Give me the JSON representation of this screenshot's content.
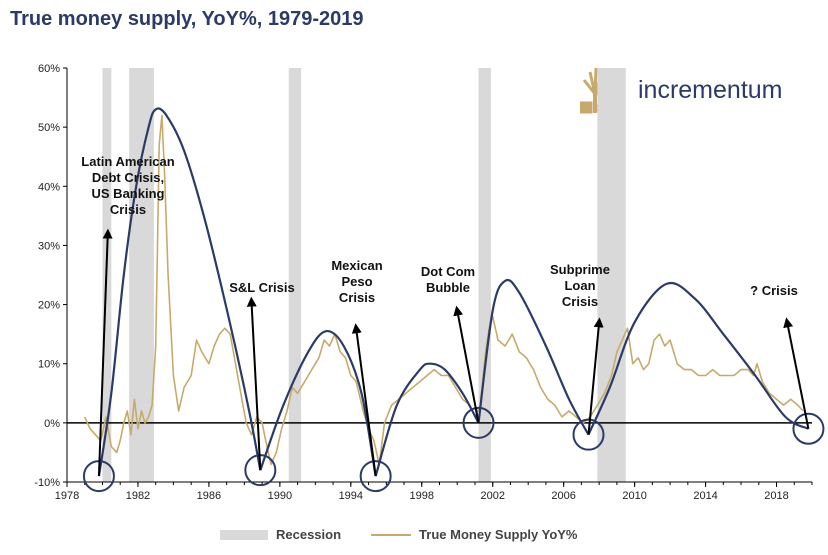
{
  "title": "True money supply, YoY%, 1979-2019",
  "logo": {
    "text": "incrementum",
    "icon": "tree-icon"
  },
  "legend": {
    "recession": "Recession",
    "series": "True Money Supply YoY%"
  },
  "colors": {
    "recession": "#d9d9d9",
    "series": "#c7aa6b",
    "cycle": "#2b3a67",
    "axis": "#000000"
  },
  "chart_data": {
    "type": "line",
    "title": "True money supply, YoY%, 1979-2019",
    "xlim": [
      1978,
      2020
    ],
    "ylim": [
      -10,
      60
    ],
    "y_ticks": [
      -10,
      0,
      10,
      20,
      30,
      40,
      50,
      60
    ],
    "y_tick_labels": [
      "-10%",
      "0%",
      "10%",
      "20%",
      "30%",
      "40%",
      "50%",
      "60%"
    ],
    "x_ticks": [
      1978,
      1982,
      1986,
      1990,
      1994,
      1998,
      2002,
      2006,
      2010,
      2014,
      2018
    ],
    "x_tick_labels": [
      "1978",
      "1982",
      "1986",
      "1990",
      "1994",
      "1998",
      "2002",
      "2006",
      "2010",
      "2014",
      "2018"
    ],
    "recessions": [
      [
        1980.0,
        1980.5
      ],
      [
        1981.5,
        1982.9
      ],
      [
        1990.5,
        1991.2
      ],
      [
        2001.2,
        2001.9
      ],
      [
        2007.9,
        2009.5
      ]
    ],
    "series": [
      {
        "name": "True Money Supply YoY%",
        "x": [
          1979.0,
          1979.3,
          1979.6,
          1979.9,
          1980.2,
          1980.5,
          1980.8,
          1981.0,
          1981.2,
          1981.4,
          1981.6,
          1981.8,
          1982.0,
          1982.2,
          1982.4,
          1982.6,
          1982.8,
          1983.0,
          1983.1,
          1983.2,
          1983.35,
          1983.5,
          1983.7,
          1984.0,
          1984.3,
          1984.6,
          1985.0,
          1985.3,
          1985.6,
          1986.0,
          1986.3,
          1986.6,
          1986.9,
          1987.2,
          1987.5,
          1987.8,
          1988.1,
          1988.4,
          1988.7,
          1989.0,
          1989.2,
          1989.5,
          1989.8,
          1990.1,
          1990.4,
          1990.7,
          1991.0,
          1991.4,
          1991.8,
          1992.2,
          1992.5,
          1992.8,
          1993.1,
          1993.4,
          1993.7,
          1994.0,
          1994.3,
          1994.7,
          1995.0,
          1995.3,
          1995.6,
          1995.9,
          1996.3,
          1996.7,
          1997.1,
          1997.5,
          1997.9,
          1998.3,
          1998.7,
          1999.1,
          1999.5,
          1999.9,
          2000.3,
          2000.7,
          2001.0,
          2001.3,
          2001.6,
          2001.8,
          2002.0,
          2002.3,
          2002.7,
          2003.1,
          2003.5,
          2003.9,
          2004.3,
          2004.7,
          2005.1,
          2005.5,
          2005.9,
          2006.3,
          2006.7,
          2007.1,
          2007.5,
          2007.9,
          2008.3,
          2008.7,
          2009.0,
          2009.3,
          2009.6,
          2009.9,
          2010.2,
          2010.5,
          2010.8,
          2011.1,
          2011.4,
          2011.7,
          2012.0,
          2012.4,
          2012.8,
          2013.2,
          2013.6,
          2014.0,
          2014.4,
          2014.8,
          2015.2,
          2015.6,
          2016.0,
          2016.4,
          2016.7,
          2016.9,
          2017.2,
          2017.6,
          2018.0,
          2018.4,
          2018.8,
          2019.2,
          2019.5
        ],
        "values": [
          1,
          -1,
          -2,
          -3,
          1,
          -4,
          -5,
          -3,
          0,
          2,
          -2,
          4,
          -1,
          2,
          0,
          1,
          3,
          13,
          30,
          47,
          52,
          42,
          25,
          8,
          2,
          6,
          8,
          14,
          12,
          10,
          13,
          15,
          16,
          15,
          10,
          5,
          0,
          -2,
          1,
          0,
          -3,
          -7,
          -5,
          -1,
          2,
          6,
          5,
          7,
          9,
          11,
          14,
          13,
          15,
          12,
          11,
          8,
          7,
          2,
          -1,
          -3,
          -7,
          0,
          3,
          4,
          5,
          6,
          7,
          8,
          9,
          8,
          8,
          6,
          4,
          3,
          1,
          3,
          12,
          16,
          18,
          14,
          13,
          15,
          12,
          11,
          9,
          6,
          4,
          3,
          1,
          2,
          1,
          0,
          1,
          3,
          5,
          8,
          12,
          14,
          16,
          10,
          11,
          9,
          10,
          14,
          15,
          13,
          14,
          10,
          9,
          9,
          8,
          8,
          9,
          8,
          8,
          8,
          9,
          9,
          8,
          10,
          7,
          5,
          4,
          3,
          4,
          3,
          2
        ]
      }
    ],
    "cycles": [
      {
        "x": [
          1979.8,
          1980.5,
          1981.2,
          1981.9,
          1982.6,
          1983.0,
          1983.6,
          1984.6,
          1985.8,
          1987.1,
          1988.2,
          1988.9
        ],
        "y": [
          -9,
          5,
          25,
          40,
          50,
          53,
          52,
          46,
          34,
          18,
          3,
          -8
        ]
      },
      {
        "x": [
          1988.9,
          1990.2,
          1991.6,
          1992.6,
          1993.6,
          1994.6,
          1995.4
        ],
        "y": [
          -8,
          3,
          12,
          15.5,
          13,
          5,
          -9
        ]
      },
      {
        "x": [
          1995.4,
          1996.6,
          1997.9,
          1998.5,
          1999.3,
          2000.3,
          2001.2
        ],
        "y": [
          -9,
          3,
          9,
          10,
          9,
          5,
          0
        ]
      },
      {
        "x": [
          2001.2,
          2002.0,
          2002.7,
          2003.5,
          2005.0,
          2006.3,
          2007.4
        ],
        "y": [
          0,
          19,
          24,
          22,
          13,
          4,
          -2
        ]
      },
      {
        "x": [
          2007.4,
          2008.6,
          2010.0,
          2011.8,
          2013.4,
          2015.0,
          2016.8,
          2018.5,
          2019.8
        ],
        "y": [
          -2,
          6,
          17,
          23.5,
          21,
          15,
          8,
          1,
          -1
        ]
      }
    ],
    "annotations": [
      {
        "lines": [
          "Latin American",
          "Debt Crisis,",
          "US Banking",
          "Crisis"
        ],
        "arrow_from": [
          1979.8,
          -9
        ],
        "arrow_to": [
          1980.3,
          32
        ]
      },
      {
        "lines": [
          "S&L Crisis"
        ],
        "arrow_from": [
          1988.9,
          -8
        ],
        "arrow_to": [
          1988.4,
          20.5
        ]
      },
      {
        "lines": [
          "Mexican",
          "Peso",
          "Crisis"
        ],
        "arrow_from": [
          1995.4,
          -9
        ],
        "arrow_to": [
          1994.3,
          16
        ]
      },
      {
        "lines": [
          "Dot Com",
          "Bubble"
        ],
        "arrow_from": [
          2001.2,
          0
        ],
        "arrow_to": [
          2000.0,
          19
        ]
      },
      {
        "lines": [
          "Subprime",
          "Loan",
          "Crisis"
        ],
        "arrow_from": [
          2007.4,
          -2
        ],
        "arrow_to": [
          2008.0,
          17
        ]
      },
      {
        "lines": [
          "? Crisis"
        ],
        "arrow_from": [
          2019.8,
          -1
        ],
        "arrow_to": [
          2018.6,
          17
        ]
      }
    ]
  }
}
